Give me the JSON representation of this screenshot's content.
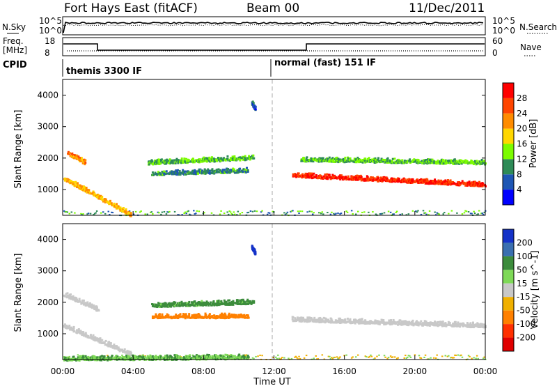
{
  "header": {
    "title": "Fort Hays East (fitACF)",
    "beam": "Beam 00",
    "date": "11/Dec/2011"
  },
  "noise_panel": {
    "left_label": "N.Sky",
    "right_label": "N.Search",
    "left_ticks": [
      "10^5",
      "10^0"
    ],
    "right_ticks": [
      "10^5",
      "10^0"
    ]
  },
  "freq_panel": {
    "left_label_line1": "Freq.",
    "left_label_line2": "[MHz]",
    "right_label": "Nave",
    "left_ticks": [
      "18",
      "8"
    ],
    "right_ticks": [
      "60",
      "0"
    ]
  },
  "cpid": {
    "label": "CPID",
    "program_1": "themis 3300 IF",
    "program_2": "normal (fast) 151 IF"
  },
  "colors": {
    "power": [
      "#0000ff",
      "#1e56b4",
      "#2e8b57",
      "#7cfc00",
      "#ffd700",
      "#ff8c00",
      "#ff4500",
      "#ff0000"
    ],
    "velocity": [
      "#1432c8",
      "#3a6fb0",
      "#3c8c3c",
      "#7ed957",
      "#c8c8c8",
      "#f0b000",
      "#ff8000",
      "#ff3000",
      "#e00000"
    ]
  },
  "chart_data": [
    {
      "type": "heatmap",
      "title": "",
      "xlabel": "",
      "ylabel": "Slant Range [km]",
      "xlim": [
        0,
        24
      ],
      "ylim": [
        180,
        4500
      ],
      "yticks": [
        "1000",
        "2000",
        "3000",
        "4000"
      ],
      "colorbar": {
        "label": "Power [dB]",
        "range": [
          0,
          32
        ],
        "tick_labels": [
          "4",
          "8",
          "12",
          "16",
          "20",
          "24",
          "28"
        ]
      },
      "series": [
        {
          "x_start": 0.0,
          "x_end": 3.8,
          "y_start": 1400,
          "y_end": 250,
          "value": 20
        },
        {
          "x_start": 0.2,
          "x_end": 1.2,
          "y_start": 2200,
          "y_end": 1900,
          "value": 22
        },
        {
          "x_start": 4.8,
          "x_end": 10.8,
          "y_start": 1900,
          "y_end": 2050,
          "value": 12
        },
        {
          "x_start": 5.0,
          "x_end": 10.5,
          "y_start": 1550,
          "y_end": 1650,
          "value": 9
        },
        {
          "x_start": 13.0,
          "x_end": 24.0,
          "y_start": 1500,
          "y_end": 1200,
          "value": 28
        },
        {
          "x_start": 13.5,
          "x_end": 24.0,
          "y_start": 2000,
          "y_end": 1900,
          "value": 12
        },
        {
          "x_start": 10.7,
          "x_end": 10.9,
          "y_start": 3800,
          "y_end": 3600,
          "value": 6
        }
      ]
    },
    {
      "type": "heatmap",
      "title": "",
      "xlabel": "Time UT",
      "ylabel": "Slant Range [km]",
      "xlim": [
        0,
        24
      ],
      "ylim": [
        180,
        4500
      ],
      "xticks": [
        "00:00",
        "04:00",
        "08:00",
        "12:00",
        "16:00",
        "20:00",
        "00:00"
      ],
      "yticks": [
        "1000",
        "2000",
        "3000",
        "4000"
      ],
      "colorbar": {
        "label": "Velocity [m s^-1]",
        "tick_labels": [
          "200",
          "100",
          "50",
          "15",
          "-15",
          "-50",
          "-100",
          "-200"
        ]
      },
      "series": [
        {
          "x_start": 0.0,
          "x_end": 3.8,
          "y_start": 1300,
          "y_end": 400,
          "value": 0
        },
        {
          "x_start": 0.0,
          "x_end": 2.0,
          "y_start": 2300,
          "y_end": 1800,
          "value": 0
        },
        {
          "x_start": 5.0,
          "x_end": 10.8,
          "y_start": 1950,
          "y_end": 2050,
          "value": 40
        },
        {
          "x_start": 5.0,
          "x_end": 10.5,
          "y_start": 1600,
          "y_end": 1600,
          "value": -50
        },
        {
          "x_start": 13.0,
          "x_end": 24.0,
          "y_start": 1500,
          "y_end": 1300,
          "value": 0
        },
        {
          "x_start": 10.7,
          "x_end": 10.9,
          "y_start": 3800,
          "y_end": 3600,
          "value": 200
        },
        {
          "x_start": 0.0,
          "x_end": 10.5,
          "y_start": 250,
          "y_end": 300,
          "value": 30
        }
      ]
    }
  ]
}
